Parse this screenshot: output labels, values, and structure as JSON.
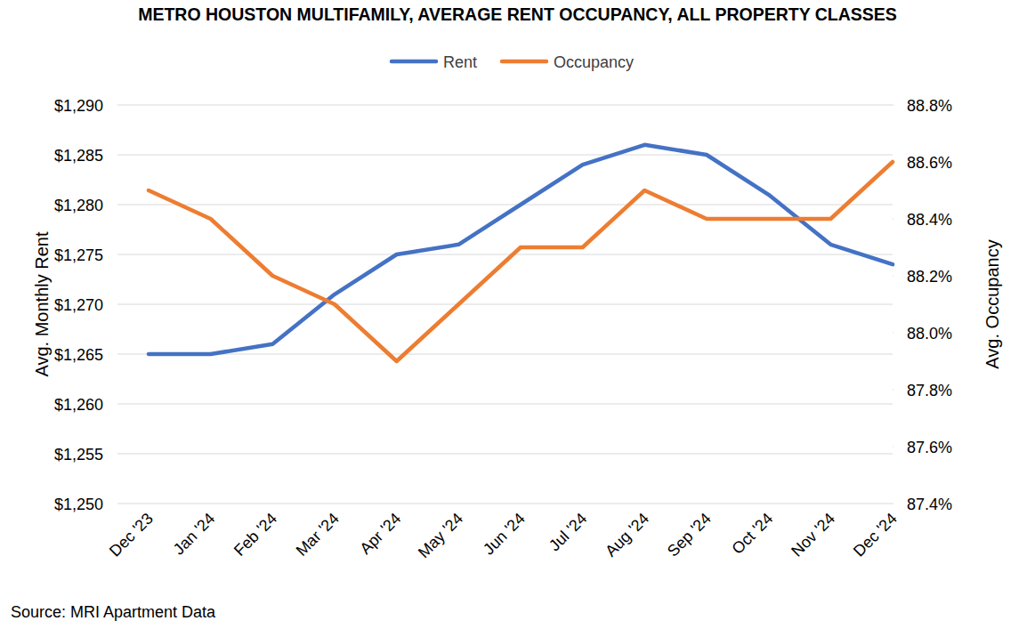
{
  "chart_data": {
    "type": "line",
    "title": "METRO HOUSTON MULTIFAMILY, AVERAGE RENT OCCUPANCY, ALL PROPERTY CLASSES",
    "source": "Source: MRI Apartment Data",
    "y_label": "Avg. Monthly Rent",
    "y2_label": "Avg. Occupancy",
    "categories": [
      "Dec '23",
      "Jan '24",
      "Feb '24",
      "Mar '24",
      "Apr '24",
      "May '24",
      "Jun '24",
      "Jul '24",
      "Aug '24",
      "Sep '24",
      "Oct '24",
      "Nov '24",
      "Dec '24"
    ],
    "series": [
      {
        "name": "Rent",
        "color": "#4472c4",
        "values": [
          1265,
          1265,
          1266,
          1271,
          1275,
          1276,
          1280,
          1284,
          1286,
          1285,
          1281,
          1276,
          1274
        ]
      },
      {
        "name": "Occupancy",
        "color": "#ed7d31",
        "axis": "y2",
        "values": [
          88.5,
          88.4,
          88.2,
          88.1,
          87.9,
          88.1,
          88.3,
          88.3,
          88.5,
          88.4,
          88.4,
          88.4,
          88.6
        ]
      }
    ],
    "ylim": [
      1250,
      1290
    ],
    "yticks": [
      {
        "value": 1250,
        "label": "$1,250"
      },
      {
        "value": 1255,
        "label": "$1,255"
      },
      {
        "value": 1260,
        "label": "$1,260"
      },
      {
        "value": 1265,
        "label": "$1,265"
      },
      {
        "value": 1270,
        "label": "$1,270"
      },
      {
        "value": 1275,
        "label": "$1,275"
      },
      {
        "value": 1280,
        "label": "$1,280"
      },
      {
        "value": 1285,
        "label": "$1,285"
      },
      {
        "value": 1290,
        "label": "$1,290"
      }
    ],
    "y2lim": [
      87.4,
      88.8
    ],
    "y2ticks": [
      {
        "value": 87.4,
        "label": "87.4%"
      },
      {
        "value": 87.6,
        "label": "87.6%"
      },
      {
        "value": 87.8,
        "label": "87.8%"
      },
      {
        "value": 88.0,
        "label": "88.0%"
      },
      {
        "value": 88.2,
        "label": "88.2%"
      },
      {
        "value": 88.4,
        "label": "88.4%"
      },
      {
        "value": 88.6,
        "label": "88.6%"
      },
      {
        "value": 88.8,
        "label": "88.8%"
      }
    ],
    "grid": true,
    "legend": "top"
  }
}
